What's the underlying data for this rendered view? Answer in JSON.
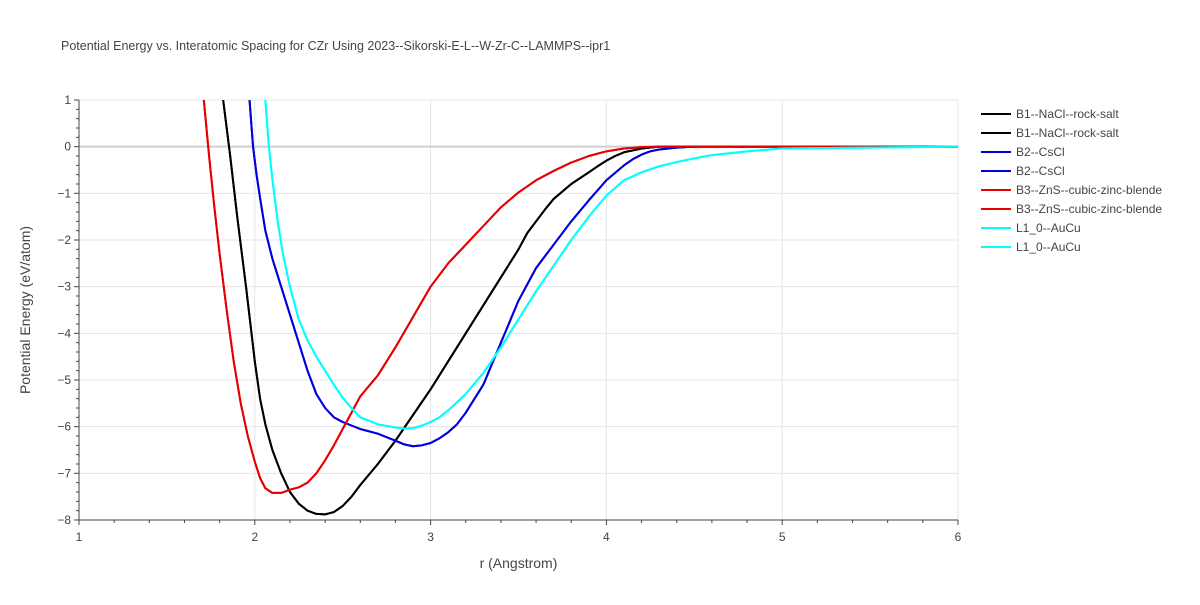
{
  "chart_data": {
    "type": "line",
    "title": "Potential Energy vs. Interatomic Spacing for CZr Using 2023--Sikorski-E-L--W-Zr-C--LAMMPS--ipr1",
    "xlabel": "r (Angstrom)",
    "ylabel": "Potential Energy (eV/atom)",
    "xlim": [
      1,
      6
    ],
    "ylim": [
      -8,
      1
    ],
    "xticks": [
      1,
      2,
      3,
      4,
      5,
      6
    ],
    "yticks": [
      1,
      0,
      -1,
      -2,
      -3,
      -4,
      -5,
      -6,
      -7,
      -8
    ],
    "xtick_labels": [
      "1",
      "2",
      "3",
      "4",
      "5",
      "6"
    ],
    "ytick_labels": [
      "1",
      "0",
      "−1",
      "−2",
      "−3",
      "−4",
      "−5",
      "−6",
      "−7",
      "−8"
    ],
    "grid": true,
    "legend_position": "right",
    "series": [
      {
        "name": "B1--NaCl--rock-salt",
        "color": "#000000",
        "x": [
          1.82,
          1.86,
          1.9,
          1.95,
          2.0,
          2.03,
          2.06,
          2.1,
          2.15,
          2.2,
          2.25,
          2.3,
          2.35,
          2.4,
          2.45,
          2.5,
          2.55,
          2.6,
          2.7,
          2.8,
          2.9,
          3.0,
          3.1,
          3.2,
          3.3,
          3.4,
          3.5,
          3.55,
          3.6,
          3.65,
          3.7,
          3.8,
          3.9,
          3.95,
          4.0,
          4.05,
          4.1,
          4.2,
          4.3,
          4.5,
          5.0,
          6.0
        ],
        "y": [
          1.0,
          -0.2,
          -1.5,
          -3.0,
          -4.6,
          -5.4,
          -5.95,
          -6.5,
          -7.0,
          -7.4,
          -7.65,
          -7.8,
          -7.87,
          -7.88,
          -7.83,
          -7.7,
          -7.5,
          -7.25,
          -6.8,
          -6.3,
          -5.75,
          -5.2,
          -4.6,
          -4.0,
          -3.4,
          -2.8,
          -2.2,
          -1.85,
          -1.6,
          -1.35,
          -1.12,
          -0.8,
          -0.55,
          -0.42,
          -0.3,
          -0.2,
          -0.12,
          -0.04,
          0.0,
          0.0,
          0.0,
          0.0
        ]
      },
      {
        "name": "B1--NaCl--rock-salt",
        "color": "#000000",
        "x": [
          1.82,
          1.86,
          1.9,
          1.95,
          2.0,
          2.03,
          2.06,
          2.1,
          2.15,
          2.2,
          2.25,
          2.3,
          2.35,
          2.4,
          2.45,
          2.5,
          2.55,
          2.6,
          2.7,
          2.8,
          2.9,
          3.0,
          3.1,
          3.2,
          3.3,
          3.4,
          3.5,
          3.55,
          3.6,
          3.65,
          3.7,
          3.8,
          3.9,
          3.95,
          4.0,
          4.05,
          4.1,
          4.2,
          4.3,
          4.5,
          5.0,
          6.0
        ],
        "y": [
          1.0,
          -0.2,
          -1.5,
          -3.0,
          -4.6,
          -5.4,
          -5.95,
          -6.5,
          -7.0,
          -7.4,
          -7.65,
          -7.8,
          -7.87,
          -7.88,
          -7.83,
          -7.7,
          -7.5,
          -7.25,
          -6.8,
          -6.3,
          -5.75,
          -5.2,
          -4.6,
          -4.0,
          -3.4,
          -2.8,
          -2.2,
          -1.85,
          -1.6,
          -1.35,
          -1.12,
          -0.8,
          -0.55,
          -0.42,
          -0.3,
          -0.2,
          -0.12,
          -0.04,
          0.0,
          0.0,
          0.0,
          0.0
        ]
      },
      {
        "name": "B2--CsCl",
        "color": "#0000dd",
        "x": [
          1.97,
          1.99,
          2.01,
          2.03,
          2.06,
          2.1,
          2.15,
          2.2,
          2.25,
          2.3,
          2.35,
          2.4,
          2.45,
          2.5,
          2.6,
          2.7,
          2.8,
          2.85,
          2.9,
          2.95,
          3.0,
          3.05,
          3.1,
          3.15,
          3.2,
          3.3,
          3.4,
          3.5,
          3.6,
          3.7,
          3.8,
          3.9,
          4.0,
          4.1,
          4.15,
          4.2,
          4.25,
          4.3,
          4.4,
          4.5,
          4.6,
          5.0,
          6.0
        ],
        "y": [
          1.0,
          0.0,
          -0.6,
          -1.1,
          -1.8,
          -2.4,
          -3.0,
          -3.6,
          -4.2,
          -4.8,
          -5.3,
          -5.6,
          -5.8,
          -5.9,
          -6.05,
          -6.15,
          -6.3,
          -6.38,
          -6.42,
          -6.4,
          -6.35,
          -6.25,
          -6.12,
          -5.95,
          -5.7,
          -5.1,
          -4.2,
          -3.3,
          -2.6,
          -2.1,
          -1.6,
          -1.15,
          -0.72,
          -0.4,
          -0.27,
          -0.17,
          -0.1,
          -0.06,
          -0.02,
          0.0,
          0.0,
          0.0,
          0.0
        ]
      },
      {
        "name": "B2--CsCl",
        "color": "#0000dd",
        "x": [
          1.97,
          1.99,
          2.01,
          2.03,
          2.06,
          2.1,
          2.15,
          2.2,
          2.25,
          2.3,
          2.35,
          2.4,
          2.45,
          2.5,
          2.6,
          2.7,
          2.8,
          2.85,
          2.9,
          2.95,
          3.0,
          3.05,
          3.1,
          3.15,
          3.2,
          3.3,
          3.4,
          3.5,
          3.6,
          3.7,
          3.8,
          3.9,
          4.0,
          4.1,
          4.15,
          4.2,
          4.25,
          4.3,
          4.4,
          4.5,
          4.6,
          5.0,
          6.0
        ],
        "y": [
          1.0,
          0.0,
          -0.6,
          -1.1,
          -1.8,
          -2.4,
          -3.0,
          -3.6,
          -4.2,
          -4.8,
          -5.3,
          -5.6,
          -5.8,
          -5.9,
          -6.05,
          -6.15,
          -6.3,
          -6.38,
          -6.42,
          -6.4,
          -6.35,
          -6.25,
          -6.12,
          -5.95,
          -5.7,
          -5.1,
          -4.2,
          -3.3,
          -2.6,
          -2.1,
          -1.6,
          -1.15,
          -0.72,
          -0.4,
          -0.27,
          -0.17,
          -0.1,
          -0.06,
          -0.02,
          0.0,
          0.0,
          0.0,
          0.0
        ]
      },
      {
        "name": "B3--ZnS--cubic-zinc-blende",
        "color": "#e60000",
        "x": [
          1.71,
          1.74,
          1.77,
          1.8,
          1.84,
          1.88,
          1.92,
          1.96,
          2.0,
          2.03,
          2.06,
          2.1,
          2.15,
          2.2,
          2.25,
          2.3,
          2.35,
          2.4,
          2.45,
          2.5,
          2.55,
          2.6,
          2.7,
          2.8,
          2.9,
          3.0,
          3.1,
          3.2,
          3.3,
          3.4,
          3.5,
          3.6,
          3.7,
          3.8,
          3.9,
          4.0,
          4.1,
          4.2,
          4.3,
          4.5,
          5.0,
          6.0
        ],
        "y": [
          1.0,
          -0.2,
          -1.3,
          -2.3,
          -3.5,
          -4.6,
          -5.5,
          -6.2,
          -6.75,
          -7.1,
          -7.32,
          -7.42,
          -7.42,
          -7.35,
          -7.3,
          -7.2,
          -7.0,
          -6.72,
          -6.4,
          -6.05,
          -5.7,
          -5.35,
          -4.9,
          -4.3,
          -3.65,
          -3.0,
          -2.5,
          -2.1,
          -1.7,
          -1.3,
          -0.98,
          -0.72,
          -0.52,
          -0.34,
          -0.2,
          -0.1,
          -0.04,
          -0.01,
          0.0,
          0.0,
          0.0,
          0.0
        ]
      },
      {
        "name": "B3--ZnS--cubic-zinc-blende",
        "color": "#e60000",
        "x": [
          1.71,
          1.74,
          1.77,
          1.8,
          1.84,
          1.88,
          1.92,
          1.96,
          2.0,
          2.03,
          2.06,
          2.1,
          2.15,
          2.2,
          2.25,
          2.3,
          2.35,
          2.4,
          2.45,
          2.5,
          2.55,
          2.6,
          2.7,
          2.8,
          2.9,
          3.0,
          3.1,
          3.2,
          3.3,
          3.4,
          3.5,
          3.6,
          3.7,
          3.8,
          3.9,
          4.0,
          4.1,
          4.2,
          4.3,
          4.5,
          5.0,
          6.0
        ],
        "y": [
          1.0,
          -0.2,
          -1.3,
          -2.3,
          -3.5,
          -4.6,
          -5.5,
          -6.2,
          -6.75,
          -7.1,
          -7.32,
          -7.42,
          -7.42,
          -7.35,
          -7.3,
          -7.2,
          -7.0,
          -6.72,
          -6.4,
          -6.05,
          -5.7,
          -5.35,
          -4.9,
          -4.3,
          -3.65,
          -3.0,
          -2.5,
          -2.1,
          -1.7,
          -1.3,
          -0.98,
          -0.72,
          -0.52,
          -0.34,
          -0.2,
          -0.1,
          -0.04,
          -0.01,
          0.0,
          0.0,
          0.0,
          0.0
        ]
      },
      {
        "name": "L1_0--AuCu",
        "color": "#00ffff",
        "x": [
          2.06,
          2.08,
          2.1,
          2.13,
          2.16,
          2.2,
          2.25,
          2.3,
          2.35,
          2.4,
          2.45,
          2.5,
          2.55,
          2.6,
          2.7,
          2.8,
          2.85,
          2.9,
          2.95,
          3.0,
          3.05,
          3.1,
          3.15,
          3.2,
          3.3,
          3.4,
          3.5,
          3.6,
          3.7,
          3.8,
          3.9,
          4.0,
          4.1,
          4.2,
          4.3,
          4.4,
          4.5,
          4.6,
          4.8,
          5.0,
          6.0
        ],
        "y": [
          1.0,
          0.0,
          -0.7,
          -1.6,
          -2.3,
          -3.0,
          -3.7,
          -4.15,
          -4.5,
          -4.8,
          -5.1,
          -5.38,
          -5.6,
          -5.8,
          -5.95,
          -6.02,
          -6.04,
          -6.03,
          -5.98,
          -5.9,
          -5.8,
          -5.65,
          -5.48,
          -5.3,
          -4.85,
          -4.3,
          -3.7,
          -3.1,
          -2.55,
          -2.0,
          -1.5,
          -1.05,
          -0.72,
          -0.55,
          -0.42,
          -0.33,
          -0.25,
          -0.18,
          -0.1,
          -0.04,
          0.0
        ]
      },
      {
        "name": "L1_0--AuCu",
        "color": "#00ffff",
        "x": [
          2.06,
          2.08,
          2.1,
          2.13,
          2.16,
          2.2,
          2.25,
          2.3,
          2.35,
          2.4,
          2.45,
          2.5,
          2.55,
          2.6,
          2.7,
          2.8,
          2.85,
          2.9,
          2.95,
          3.0,
          3.05,
          3.1,
          3.15,
          3.2,
          3.3,
          3.4,
          3.5,
          3.6,
          3.7,
          3.8,
          3.9,
          4.0,
          4.1,
          4.2,
          4.3,
          4.4,
          4.5,
          4.6,
          4.8,
          5.0,
          6.0
        ],
        "y": [
          1.0,
          0.0,
          -0.7,
          -1.6,
          -2.3,
          -3.0,
          -3.7,
          -4.15,
          -4.5,
          -4.8,
          -5.1,
          -5.38,
          -5.6,
          -5.8,
          -5.95,
          -6.02,
          -6.04,
          -6.03,
          -5.98,
          -5.9,
          -5.8,
          -5.65,
          -5.48,
          -5.3,
          -4.85,
          -4.3,
          -3.7,
          -3.1,
          -2.55,
          -2.0,
          -1.5,
          -1.05,
          -0.72,
          -0.55,
          -0.42,
          -0.33,
          -0.25,
          -0.18,
          -0.1,
          -0.04,
          0.0
        ]
      }
    ]
  }
}
